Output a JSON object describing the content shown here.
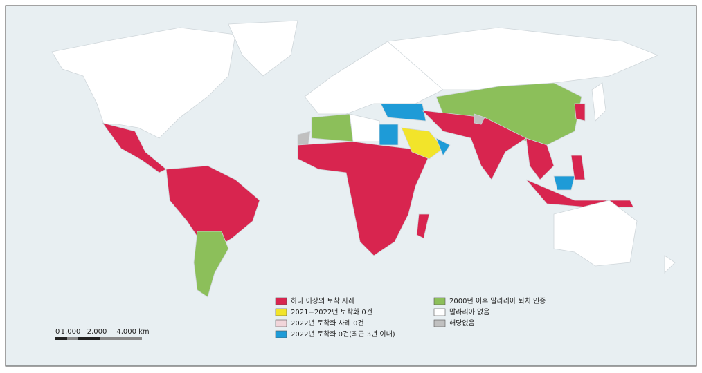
{
  "legend": [
    {
      "label": "하나 이상의 토착 사례",
      "color": "#d8254f"
    },
    {
      "label": "2021−2022년 토착화 0건",
      "color": "#f2e42a"
    },
    {
      "label": "2022년 토착화 사례 0건",
      "color": "#f1d5da"
    },
    {
      "label": "2022년 토착화 0건(최근 3년 이내)",
      "color": "#1e9bd7"
    },
    {
      "label": "2000년 이후 말라리아 퇴치 인증",
      "color": "#8cbf5a"
    },
    {
      "label": "말라리아 없음",
      "color": "#ffffff"
    },
    {
      "label": "해당없음",
      "color": "#c0c0c0"
    }
  ],
  "scale_bar": {
    "labels": [
      "0",
      "1,000",
      "2,000",
      "4,000 km"
    ]
  }
}
